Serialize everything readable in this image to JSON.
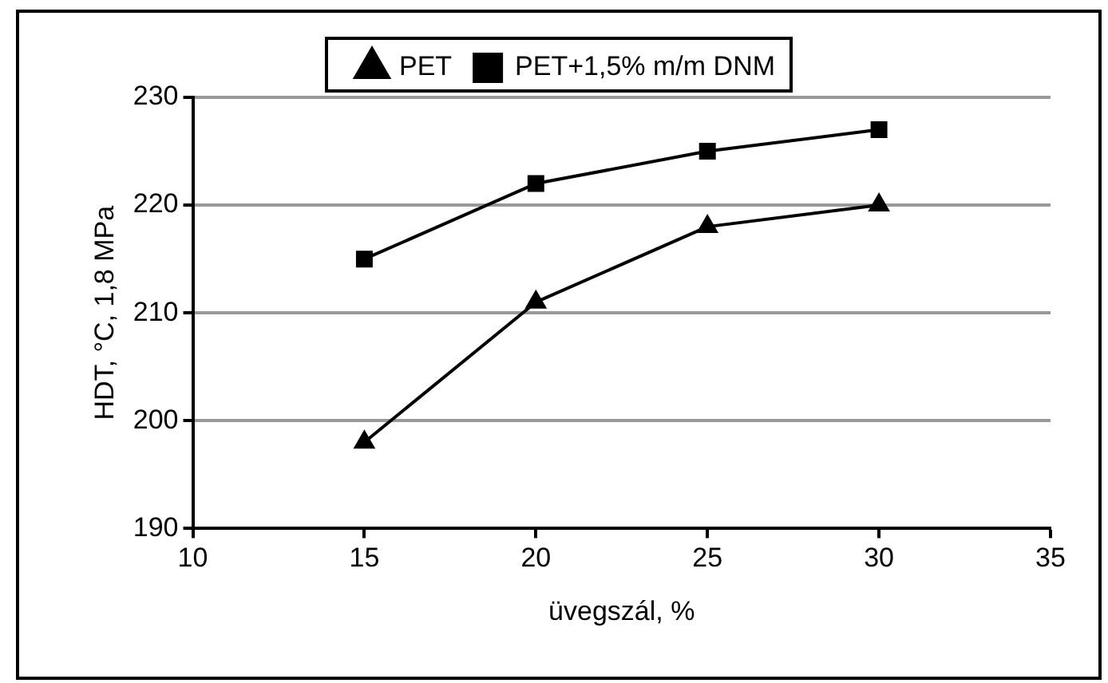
{
  "chart_data": {
    "type": "line",
    "xlabel": "üvegszál, %",
    "ylabel": "HDT, °C, 1,8 MPa",
    "series": [
      {
        "name": "PET",
        "color": "#000000",
        "marker": "triangle",
        "x": [
          15,
          20,
          25,
          30
        ],
        "values": [
          198,
          211,
          218,
          220
        ]
      },
      {
        "name": "PET+1,5% m/m DNM",
        "color": "#000000",
        "marker": "square",
        "x": [
          15,
          20,
          25,
          30
        ],
        "values": [
          215,
          222,
          225,
          227
        ]
      }
    ],
    "xlim": [
      10,
      35
    ],
    "xticks": [
      10,
      15,
      20,
      25,
      30,
      35
    ],
    "ylim": [
      190,
      230
    ],
    "yticks": [
      190,
      200,
      210,
      220,
      230
    ],
    "grid": "y",
    "legend": "top",
    "line_style": "solid"
  }
}
